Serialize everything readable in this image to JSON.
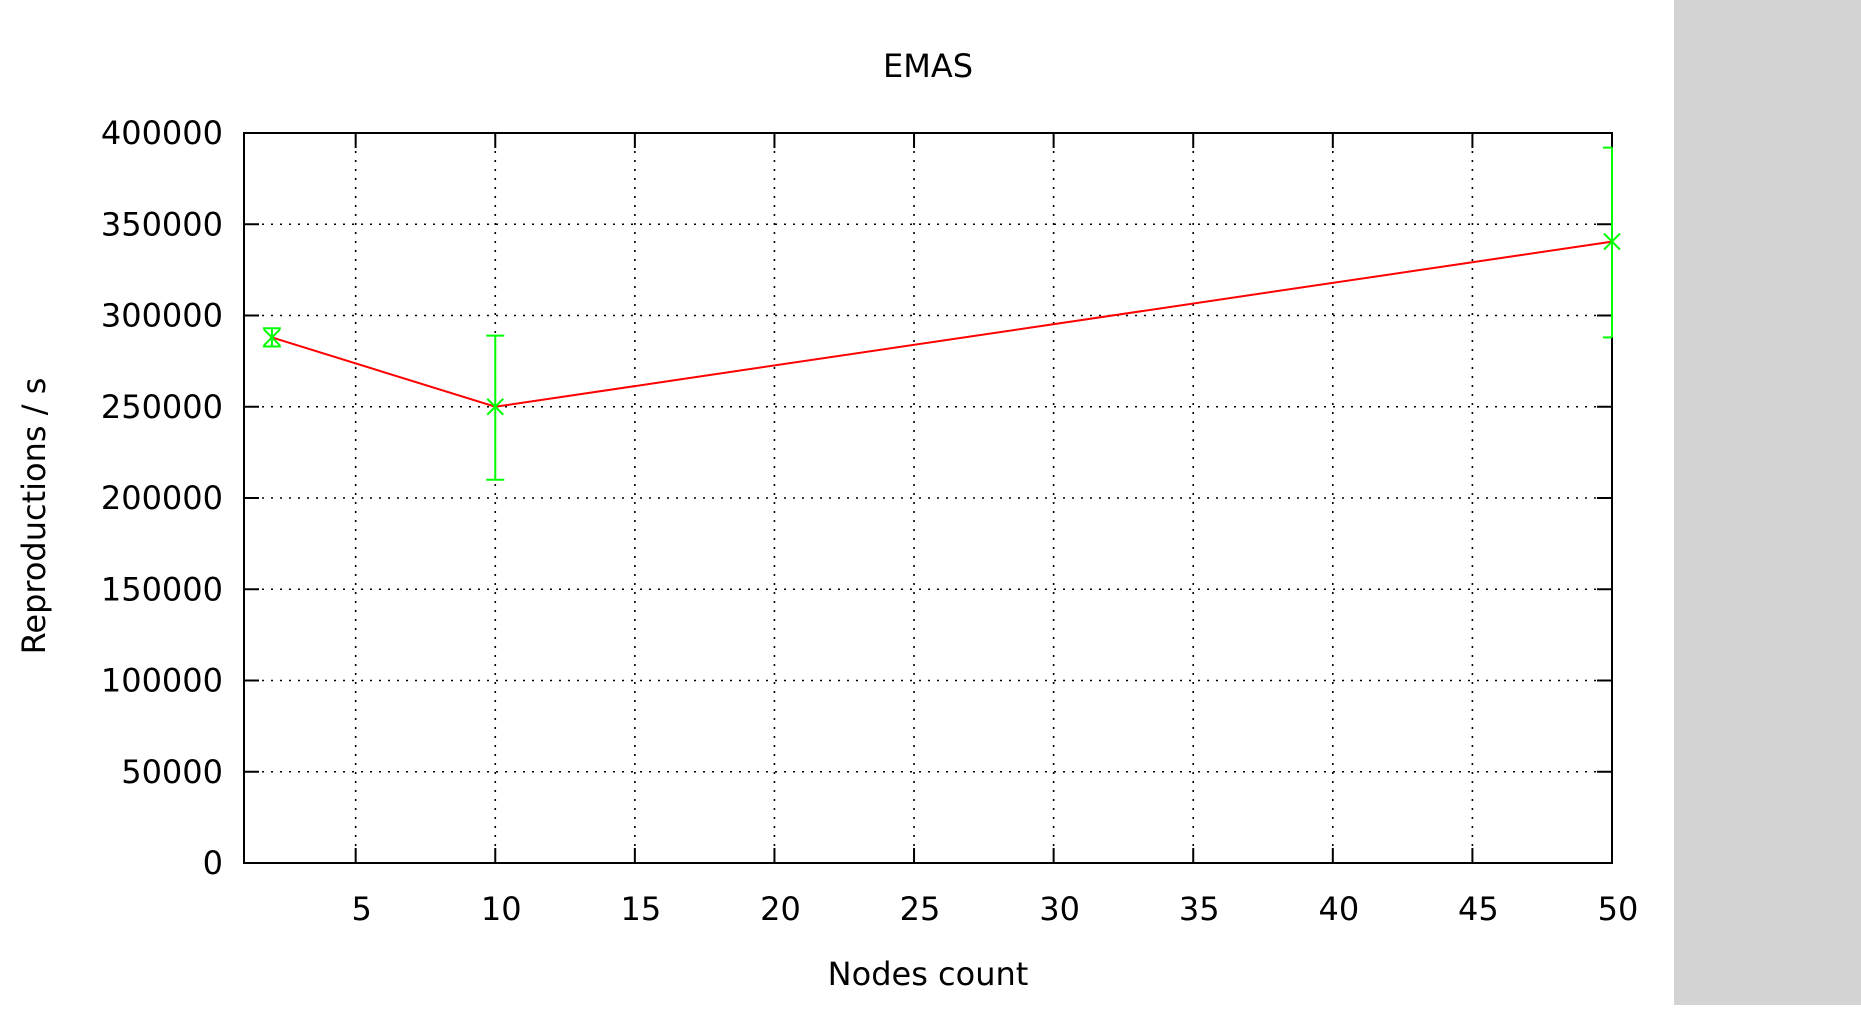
{
  "chart_data": {
    "type": "line",
    "title": "EMAS",
    "xlabel": "Nodes count",
    "ylabel": "Reproductions / s",
    "xlim": [
      1,
      50
    ],
    "ylim": [
      0,
      400000
    ],
    "xticks": [
      5,
      10,
      15,
      20,
      25,
      30,
      35,
      40,
      45,
      50
    ],
    "yticks": [
      0,
      50000,
      100000,
      150000,
      200000,
      250000,
      300000,
      350000,
      400000
    ],
    "grid": true,
    "series": [
      {
        "line_color": "#ff0000",
        "errorbar_color": "#00ff00",
        "x": [
          2,
          10,
          50
        ],
        "y": [
          288000,
          250000,
          340500
        ],
        "yerr_low": [
          283000,
          210000,
          288000
        ],
        "yerr_high": [
          293000,
          289000,
          392000
        ]
      }
    ]
  }
}
